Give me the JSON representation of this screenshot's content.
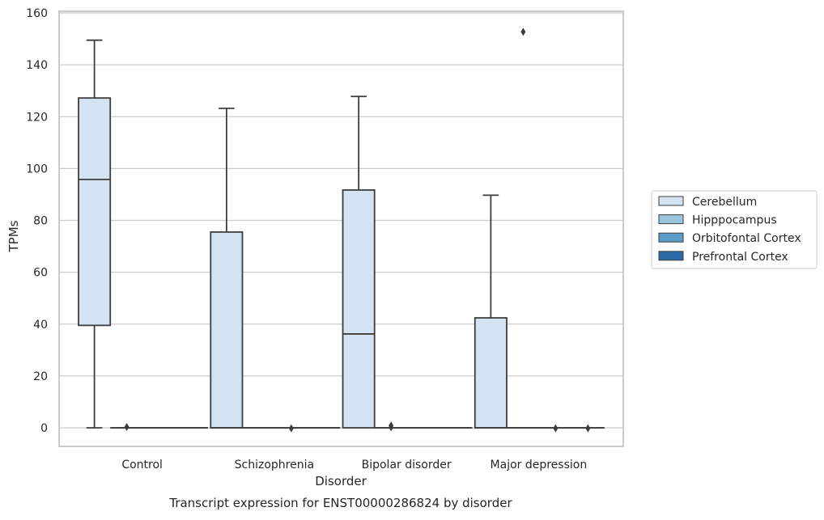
{
  "chart_data": {
    "type": "box",
    "title": "Transcript expression for ENST00000286824 by disorder",
    "xlabel": "Disorder",
    "ylabel": "TPMs",
    "ylim": [
      -7,
      160
    ],
    "yticks": [
      0,
      20,
      40,
      60,
      80,
      100,
      120,
      140,
      160
    ],
    "grid": true,
    "legend_position": "right",
    "categories": [
      "Control",
      "Schizophrenia",
      "Bipolar disorder",
      "Major depression"
    ],
    "series": [
      {
        "name": "Cerebellum",
        "color": "#d4e3f1",
        "boxes": [
          {
            "min": 0,
            "q1": 39.5,
            "median": 95.8,
            "q3": 127.2,
            "max": 149.5,
            "outliers": []
          },
          {
            "min": 0,
            "q1": 0,
            "median": 0,
            "q3": 75.5,
            "max": 123.2,
            "outliers": []
          },
          {
            "min": 0,
            "q1": 0,
            "median": 36.2,
            "q3": 91.7,
            "max": 127.8,
            "outliers": []
          },
          {
            "min": 0,
            "q1": 0,
            "median": 0,
            "q3": 42.4,
            "max": 89.7,
            "outliers": []
          }
        ]
      },
      {
        "name": "Hipppocampus",
        "color": "#9bc5dd",
        "boxes": [
          {
            "min": 0,
            "q1": 0,
            "median": 0,
            "q3": 0,
            "max": 0,
            "outliers": [
              0.3
            ]
          },
          {
            "min": 0,
            "q1": 0,
            "median": 0,
            "q3": 0,
            "max": 0,
            "outliers": []
          },
          {
            "min": 0,
            "q1": 0,
            "median": 0,
            "q3": 0,
            "max": 0,
            "outliers": [
              0.2,
              0.9
            ]
          },
          {
            "min": 0,
            "q1": 0,
            "median": 0,
            "q3": 0,
            "max": 0,
            "outliers": [
              152.7
            ]
          }
        ]
      },
      {
        "name": "Orbitofontal Cortex",
        "color": "#5a9bc8",
        "boxes": [
          {
            "min": 0,
            "q1": 0,
            "median": 0,
            "q3": 0,
            "max": 0,
            "outliers": []
          },
          {
            "min": 0,
            "q1": 0,
            "median": 0,
            "q3": 0,
            "max": 0,
            "outliers": [
              -0.2
            ]
          },
          {
            "min": 0,
            "q1": 0,
            "median": 0,
            "q3": 0,
            "max": 0,
            "outliers": []
          },
          {
            "min": 0,
            "q1": 0,
            "median": 0,
            "q3": 0,
            "max": 0,
            "outliers": [
              -0.2
            ]
          }
        ]
      },
      {
        "name": "Prefrontal Cortex",
        "color": "#2b6aa6",
        "boxes": [
          {
            "min": 0,
            "q1": 0,
            "median": 0,
            "q3": 0,
            "max": 0,
            "outliers": []
          },
          {
            "min": 0,
            "q1": 0,
            "median": 0,
            "q3": 0,
            "max": 0,
            "outliers": []
          },
          {
            "min": 0,
            "q1": 0,
            "median": 0,
            "q3": 0,
            "max": 0,
            "outliers": []
          },
          {
            "min": 0,
            "q1": 0,
            "median": 0,
            "q3": 0,
            "max": 0,
            "outliers": [
              -0.2
            ]
          }
        ]
      }
    ]
  }
}
